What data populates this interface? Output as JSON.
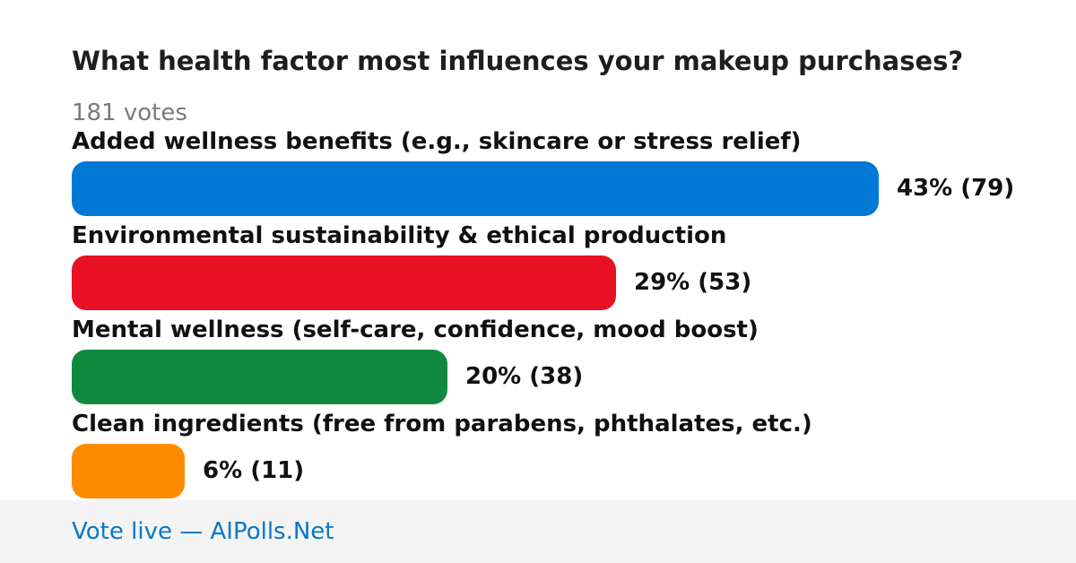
{
  "chart_data": {
    "type": "bar",
    "orientation": "horizontal",
    "title": "What health factor most influences your makeup purchases?",
    "total_votes_label": "181 votes",
    "categories": [
      "Added wellness benefits (e.g., skincare or stress relief)",
      "Environmental sustainability & ethical production",
      "Mental wellness (self-care, confidence, mood boost)",
      "Clean ingredients (free from parabens, phthalates, etc.)"
    ],
    "series": [
      {
        "percent": [
          43,
          29,
          20,
          6
        ],
        "votes": [
          79,
          53,
          38,
          11
        ],
        "value_labels": [
          "43% (79)",
          "29% (53)",
          "20% (38)",
          "6% (11)"
        ]
      }
    ],
    "colors": [
      "#0078d4",
      "#e81123",
      "#10893e",
      "#ff8c00"
    ],
    "grid": false,
    "legend": "none"
  },
  "footer": {
    "link_text": "Vote live — AIPolls.Net"
  }
}
